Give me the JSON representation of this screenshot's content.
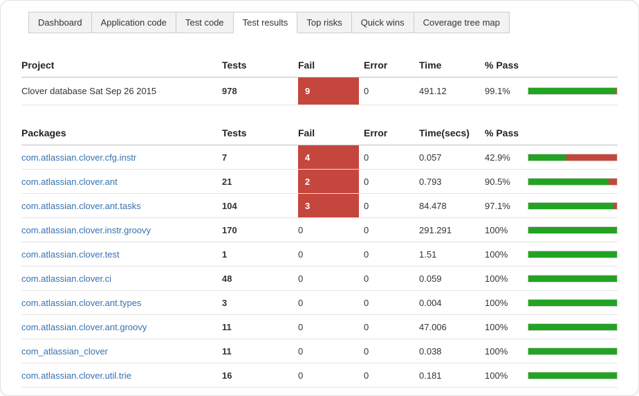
{
  "tabs": [
    {
      "label": "Dashboard",
      "active": false
    },
    {
      "label": "Application code",
      "active": false
    },
    {
      "label": "Test code",
      "active": false
    },
    {
      "label": "Test results",
      "active": true
    },
    {
      "label": "Top risks",
      "active": false
    },
    {
      "label": "Quick wins",
      "active": false
    },
    {
      "label": "Coverage tree map",
      "active": false
    }
  ],
  "project_table": {
    "headers": {
      "name": "Project",
      "tests": "Tests",
      "fail": "Fail",
      "error": "Error",
      "time": "Time",
      "pass": "% Pass"
    },
    "rows": [
      {
        "name": "Clover database Sat Sep 26 2015",
        "tests": "978",
        "fail": "9",
        "error": "0",
        "time": "491.12",
        "pass": "99.1%",
        "pass_pct": 99.1
      }
    ]
  },
  "packages_table": {
    "headers": {
      "name": "Packages",
      "tests": "Tests",
      "fail": "Fail",
      "error": "Error",
      "time": "Time(secs)",
      "pass": "% Pass"
    },
    "rows": [
      {
        "name": "com.atlassian.clover.cfg.instr",
        "tests": "7",
        "fail": "4",
        "error": "0",
        "time": "0.057",
        "pass": "42.9%",
        "pass_pct": 42.9
      },
      {
        "name": "com.atlassian.clover.ant",
        "tests": "21",
        "fail": "2",
        "error": "0",
        "time": "0.793",
        "pass": "90.5%",
        "pass_pct": 90.5
      },
      {
        "name": "com.atlassian.clover.ant.tasks",
        "tests": "104",
        "fail": "3",
        "error": "0",
        "time": "84.478",
        "pass": "97.1%",
        "pass_pct": 97.1
      },
      {
        "name": "com.atlassian.clover.instr.groovy",
        "tests": "170",
        "fail": "0",
        "error": "0",
        "time": "291.291",
        "pass": "100%",
        "pass_pct": 100
      },
      {
        "name": "com.atlassian.clover.test",
        "tests": "1",
        "fail": "0",
        "error": "0",
        "time": "1.51",
        "pass": "100%",
        "pass_pct": 100
      },
      {
        "name": "com.atlassian.clover.ci",
        "tests": "48",
        "fail": "0",
        "error": "0",
        "time": "0.059",
        "pass": "100%",
        "pass_pct": 100
      },
      {
        "name": "com.atlassian.clover.ant.types",
        "tests": "3",
        "fail": "0",
        "error": "0",
        "time": "0.004",
        "pass": "100%",
        "pass_pct": 100
      },
      {
        "name": "com.atlassian.clover.ant.groovy",
        "tests": "11",
        "fail": "0",
        "error": "0",
        "time": "47.006",
        "pass": "100%",
        "pass_pct": 100
      },
      {
        "name": "com_atlassian_clover",
        "tests": "11",
        "fail": "0",
        "error": "0",
        "time": "0.038",
        "pass": "100%",
        "pass_pct": 100
      },
      {
        "name": "com.atlassian.clover.util.trie",
        "tests": "16",
        "fail": "0",
        "error": "0",
        "time": "0.181",
        "pass": "100%",
        "pass_pct": 100
      }
    ]
  },
  "colors": {
    "fail_bg": "#c5463d",
    "bar_green": "#22a322",
    "bar_red": "#c5463d",
    "link": "#3572b0"
  }
}
